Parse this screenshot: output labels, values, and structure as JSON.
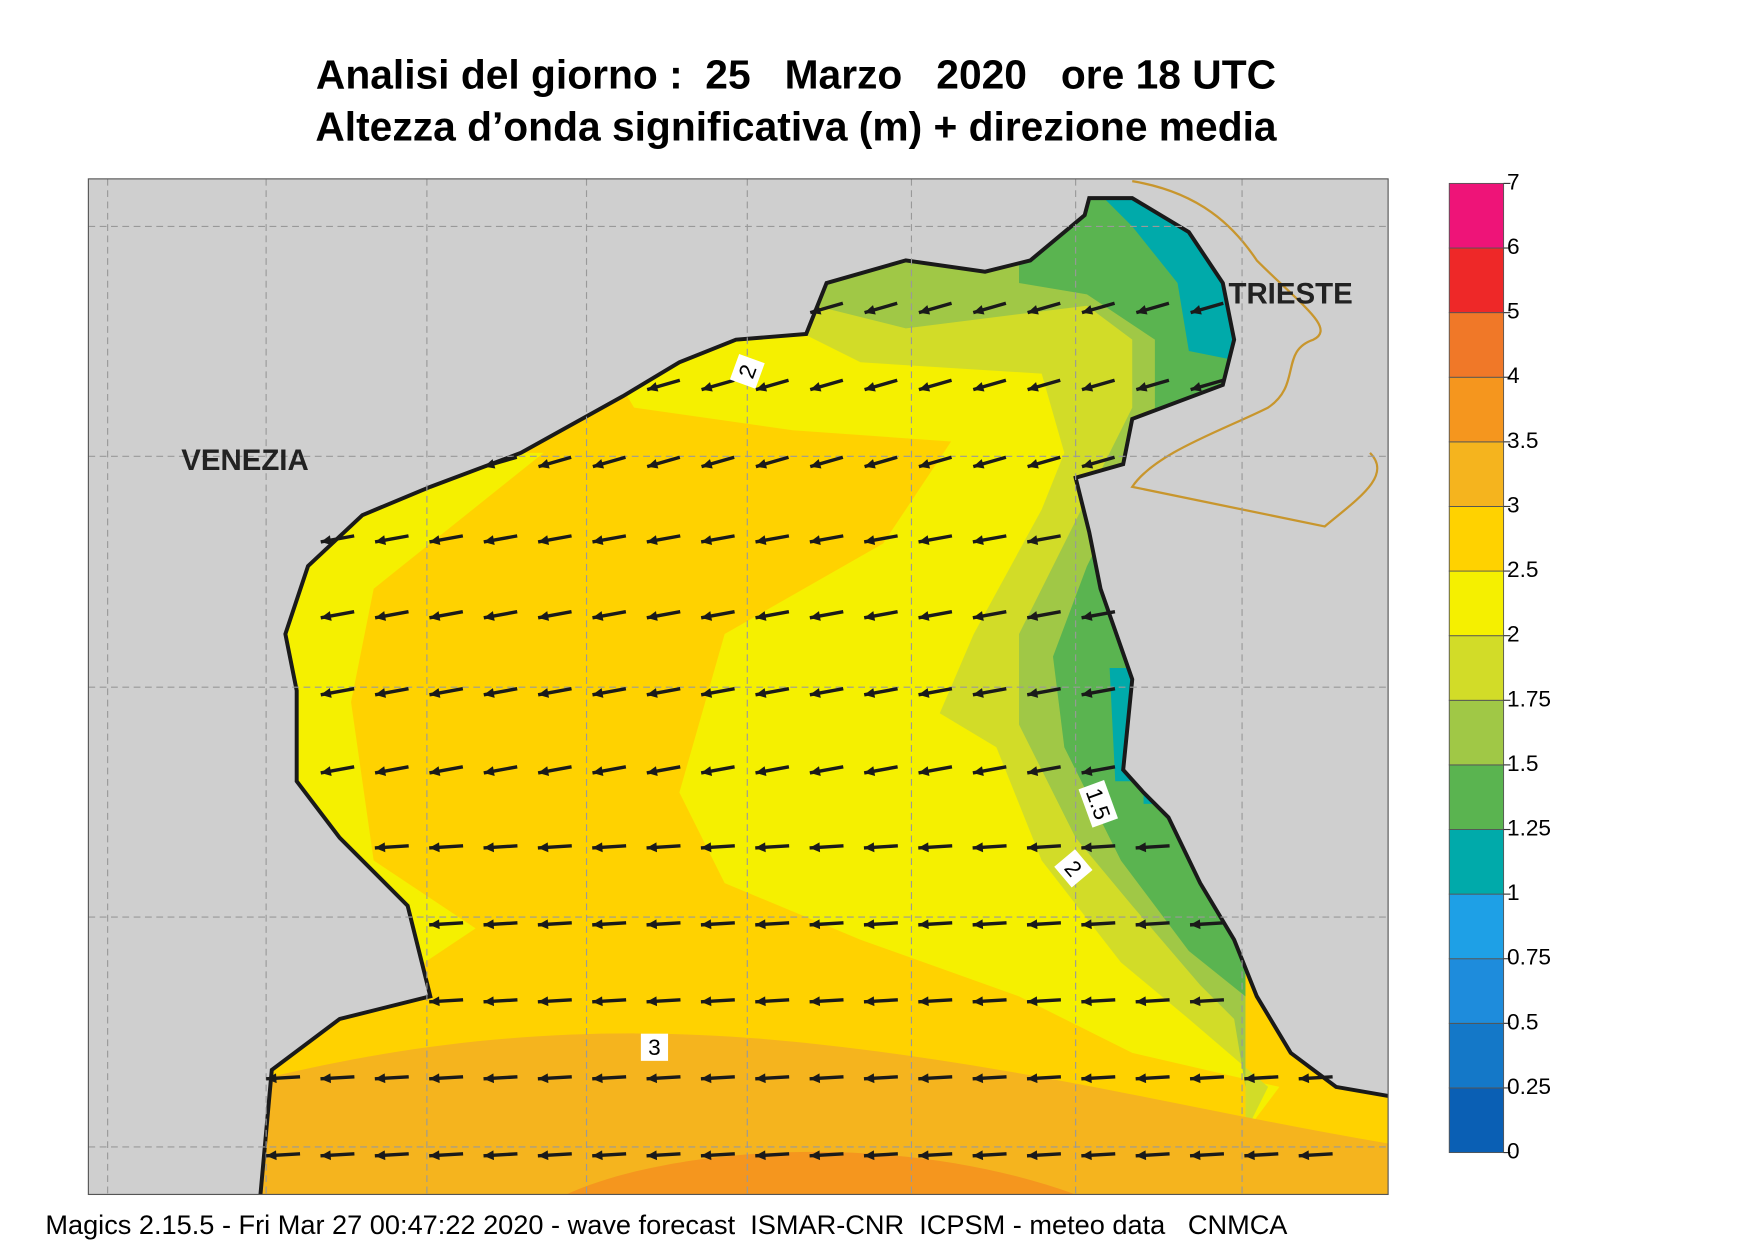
{
  "header": {
    "title": "Analisi del giorno :  25   Marzo   2020   ore 18 UTC",
    "subtitle": "Altezza d’onda significativa (m) + direzione media"
  },
  "map": {
    "places": [
      "VENEZIA",
      "TRIESTE"
    ],
    "contour_labels": [
      2,
      3,
      1.5,
      2
    ]
  },
  "legend": {
    "ticks": [
      0,
      0.25,
      0.5,
      0.75,
      1,
      1.25,
      1.5,
      1.75,
      2,
      2.5,
      3,
      3.5,
      4,
      5,
      6,
      7
    ],
    "colors": [
      "#0a5fb4",
      "#1478c8",
      "#1e8cdc",
      "#1ea0e6",
      "#00aaaa",
      "#5ab450",
      "#a0c846",
      "#d2dc28",
      "#f5f000",
      "#ffd200",
      "#f5b41e",
      "#f5961e",
      "#f07828",
      "#ee2828",
      "#ee1478"
    ]
  },
  "footer": "Magics 2.15.5 - Fri Mar 27 00:47:22 2020 - wave forecast  ISMAR-CNR  ICPSM - meteo data   CNMCA"
}
